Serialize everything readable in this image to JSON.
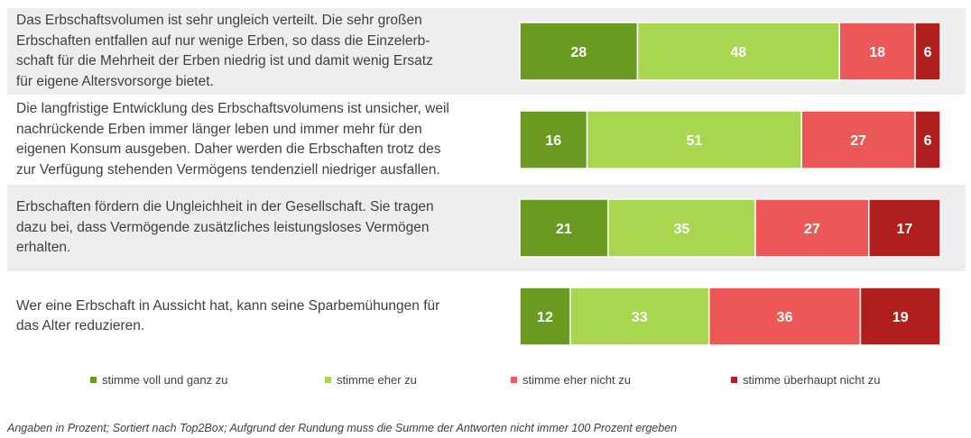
{
  "chart_data": {
    "type": "bar",
    "orientation": "horizontal",
    "stacked": true,
    "xlim": [
      0,
      100
    ],
    "grid": false,
    "legend_position": "bottom",
    "categories": [
      "Das Erbschaftsvolumen ist sehr ungleich verteilt. Die sehr großen Erbschaften entfallen auf nur wenige Erben, so dass die Einzelerb-schaft für die Mehrheit der Erben niedrig ist und damit wenig Ersatz für eigene Altersvorsorge bietet.",
      "Die langfristige Entwicklung des Erbschaftsvolumens ist unsicher, weil nachrückende Erben immer länger leben und immer mehr für den eigenen Konsum ausgeben. Daher werden die Erbschaften trotz des zur Verfügung stehenden Vermögens tendenziell niedriger ausfallen.",
      "Erbschaften fördern die Ungleichheit in der Gesellschaft. Sie tragen dazu bei, dass Vermögende zusätzliches leistungsloses Vermögen erhalten.",
      "Wer eine Erbschaft in Aussicht hat, kann seine Sparbemühungen für das Alter reduzieren."
    ],
    "series": [
      {
        "name": "stimme voll und ganz zu",
        "color": "#6a9a1f",
        "values": [
          28,
          16,
          21,
          12
        ]
      },
      {
        "name": "stimme eher zu",
        "color": "#a8d64e",
        "values": [
          48,
          51,
          35,
          33
        ]
      },
      {
        "name": "stimme eher nicht zu",
        "color": "#ee5757",
        "values": [
          18,
          27,
          27,
          36
        ]
      },
      {
        "name": "stimme überhaupt nicht zu",
        "color": "#b01e1e",
        "values": [
          6,
          6,
          17,
          19
        ]
      }
    ]
  },
  "statements": [
    [
      "Das Erbschaftsvolumen ist sehr ungleich verteilt. Die sehr großen",
      "Erbschaften entfallen auf nur wenige Erben, so dass die Einzelerb-",
      "schaft für die Mehrheit der Erben niedrig ist und damit wenig Ersatz",
      "für eigene Altersvorsorge bietet."
    ],
    [
      "Die langfristige Entwicklung des Erbschaftsvolumens ist unsicher, weil",
      "nachrückende Erben immer länger leben und immer mehr für den",
      "eigenen Konsum ausgeben. Daher werden die Erbschaften trotz des",
      "zur Verfügung stehenden Vermögens tendenziell niedriger ausfallen."
    ],
    [
      "Erbschaften fördern die Ungleichheit in der Gesellschaft. Sie tragen",
      "dazu bei, dass Vermögende zusätzliches leistungsloses Vermögen",
      "erhalten."
    ],
    [
      "Wer eine Erbschaft in Aussicht hat, kann seine Sparbemühungen für",
      "das Alter reduzieren."
    ]
  ],
  "row_shading": [
    "#eeeeee",
    "#ffffff",
    "#eeeeee",
    "#ffffff"
  ],
  "footnote": "Angaben in Prozent; Sortiert nach Top2Box; Aufgrund der Rundung muss die Summe der Antworten nicht immer 100 Prozent ergeben"
}
